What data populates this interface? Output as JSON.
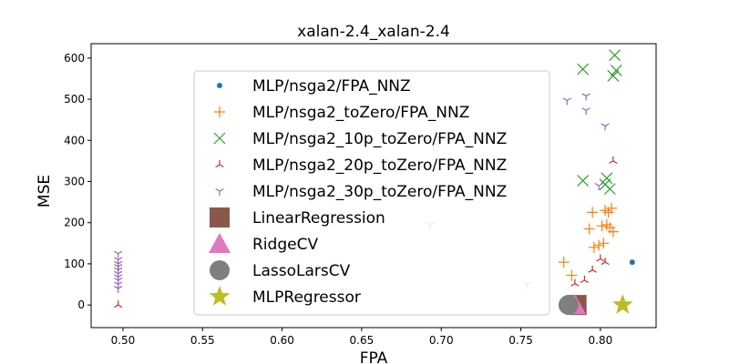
{
  "chart_data": {
    "type": "scatter",
    "title": "xalan-2.4_xalan-2.4",
    "xlabel": "FPA",
    "ylabel": "MSE",
    "xlim": [
      0.48,
      0.835
    ],
    "ylim": [
      -55,
      635
    ],
    "xticks": [
      0.5,
      0.55,
      0.6,
      0.65,
      0.7,
      0.75,
      0.8
    ],
    "xtick_labels": [
      "0.50",
      "0.55",
      "0.60",
      "0.65",
      "0.70",
      "0.75",
      "0.80"
    ],
    "yticks": [
      0,
      100,
      200,
      300,
      400,
      500,
      600
    ],
    "ytick_labels": [
      "0",
      "100",
      "200",
      "300",
      "400",
      "500",
      "600"
    ],
    "grid": false,
    "legend_position": "center",
    "series": [
      {
        "name": "MLP/nsga2/FPA_NNZ",
        "marker": "dot",
        "color": "#1f77b4",
        "points": [
          [
            0.82,
            104
          ]
        ]
      },
      {
        "name": "MLP/nsga2_toZero/FPA_NNZ",
        "marker": "plus",
        "color": "#ff7f0e",
        "points": [
          [
            0.777,
            104
          ],
          [
            0.782,
            72
          ],
          [
            0.793,
            185
          ],
          [
            0.795,
            225
          ],
          [
            0.796,
            140
          ],
          [
            0.799,
            145
          ],
          [
            0.801,
            192
          ],
          [
            0.802,
            150
          ],
          [
            0.803,
            230
          ],
          [
            0.804,
            195
          ],
          [
            0.805,
            225
          ],
          [
            0.806,
            188
          ],
          [
            0.807,
            235
          ],
          [
            0.808,
            178
          ]
        ]
      },
      {
        "name": "MLP/nsga2_10p_toZero/FPA_NNZ",
        "marker": "x",
        "color": "#2ca02c",
        "points": [
          [
            0.789,
            573
          ],
          [
            0.789,
            302
          ],
          [
            0.803,
            293
          ],
          [
            0.804,
            308
          ],
          [
            0.806,
            282
          ],
          [
            0.808,
            557
          ],
          [
            0.809,
            607
          ],
          [
            0.81,
            570
          ]
        ]
      },
      {
        "name": "MLP/nsga2_20p_toZero/FPA_NNZ",
        "marker": "tri_down",
        "color": "#d62728",
        "points": [
          [
            0.497,
            0
          ],
          [
            0.784,
            52
          ],
          [
            0.79,
            60
          ],
          [
            0.795,
            85
          ],
          [
            0.8,
            112
          ],
          [
            0.803,
            104
          ],
          [
            0.808,
            350
          ]
        ]
      },
      {
        "name": "MLP/nsga2_30p_toZero/FPA_NNZ",
        "marker": "tri_up",
        "color": "#9467bd",
        "points": [
          [
            0.497,
            40
          ],
          [
            0.497,
            50
          ],
          [
            0.497,
            60
          ],
          [
            0.497,
            68
          ],
          [
            0.497,
            76
          ],
          [
            0.497,
            85
          ],
          [
            0.497,
            93
          ],
          [
            0.497,
            100
          ],
          [
            0.497,
            110
          ],
          [
            0.497,
            125
          ],
          [
            0.693,
            195
          ],
          [
            0.754,
            50
          ],
          [
            0.779,
            497
          ],
          [
            0.791,
            508
          ],
          [
            0.791,
            473
          ],
          [
            0.799,
            290
          ],
          [
            0.803,
            435
          ]
        ]
      },
      {
        "name": "LinearRegression",
        "marker": "square",
        "color": "#8c564b",
        "points": [
          [
            0.785,
            0
          ]
        ]
      },
      {
        "name": "RidgeCV",
        "marker": "triangle",
        "color": "#e377c2",
        "points": [
          [
            0.784,
            0
          ]
        ]
      },
      {
        "name": "LassoLarsCV",
        "marker": "circle",
        "color": "#7f7f7f",
        "points": [
          [
            0.78,
            0
          ]
        ]
      },
      {
        "name": "MLPRegressor",
        "marker": "star",
        "color": "#bcbd22",
        "points": [
          [
            0.814,
            0
          ]
        ]
      }
    ]
  }
}
